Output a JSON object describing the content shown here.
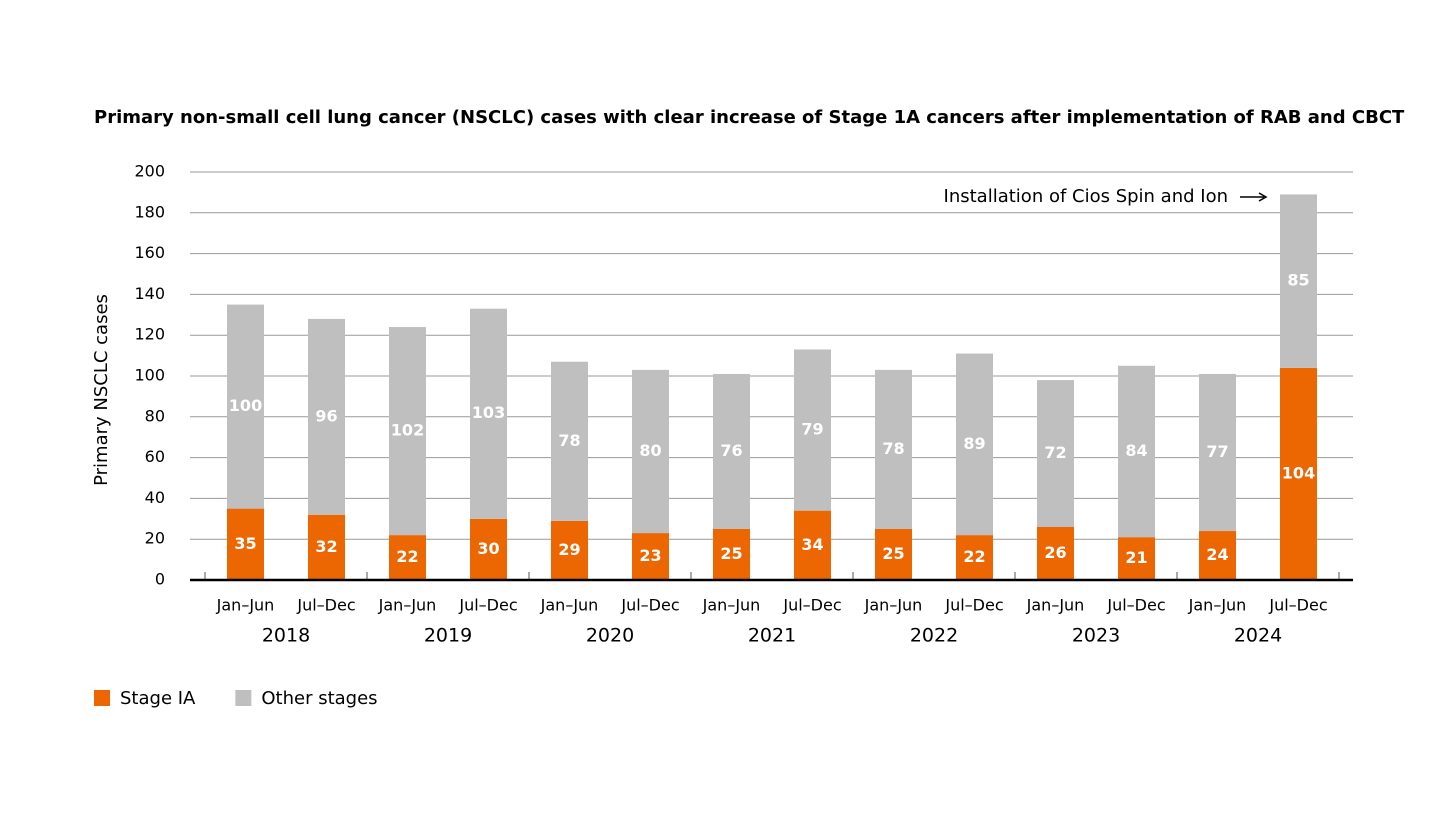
{
  "chart_data": {
    "type": "stacked_bar",
    "title": "Primary non-small cell lung cancer (NSCLC) cases with clear increase of Stage 1A cancers after implementation of RAB and CBCT",
    "y_label": "Primary NSCLC cases",
    "annotation": "Installation of Cios Spin and Ion",
    "categories": [
      "Jan–Jun",
      "Jul–Dec",
      "Jan–Jun",
      "Jul–Dec",
      "Jan–Jun",
      "Jul–Dec",
      "Jan–Jun",
      "Jul–Dec",
      "Jan–Jun",
      "Jul–Dec",
      "Jan–Jun",
      "Jul–Dec",
      "Jan–Jun",
      "Jul–Dec"
    ],
    "groups": [
      "2018",
      "2019",
      "2020",
      "2021",
      "2022",
      "2023",
      "2024"
    ],
    "series": [
      {
        "name": "Stage IA",
        "color": "#ec6602",
        "values": [
          35,
          32,
          22,
          30,
          29,
          23,
          25,
          34,
          25,
          22,
          26,
          21,
          24,
          104
        ]
      },
      {
        "name": "Other stages",
        "color": "#bfbfbf",
        "values": [
          100,
          96,
          102,
          103,
          78,
          80,
          76,
          79,
          78,
          89,
          72,
          84,
          77,
          85
        ]
      }
    ],
    "ylim": [
      0,
      200
    ],
    "yticks": [
      0,
      20,
      40,
      60,
      80,
      100,
      120,
      140,
      160,
      180,
      200
    ],
    "grid": true
  }
}
